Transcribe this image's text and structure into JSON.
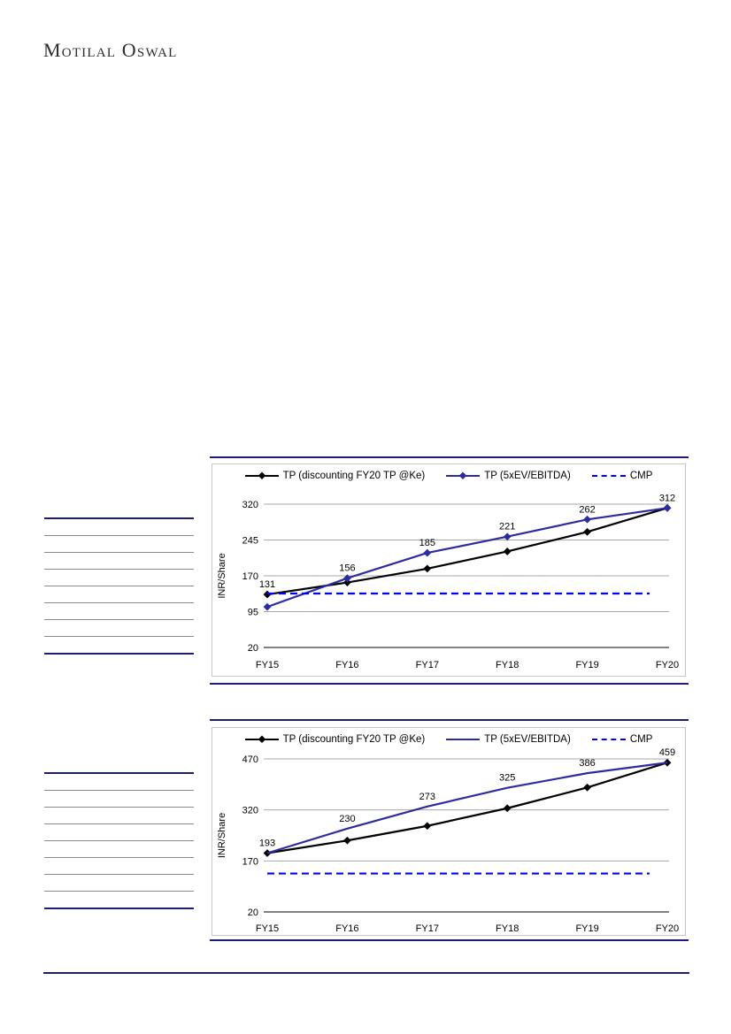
{
  "page": {
    "logo_text": "Motilal Oswal"
  },
  "colors": {
    "brand_navy_rule": "#1C1C78",
    "tp_black_line": "#000000",
    "tp_navy_line": "#2C2CA0",
    "cmp_dashed_blue": "#0000FF",
    "gridline_gray": "#A8A8A8"
  },
  "side_tables": [
    {
      "rows": 8
    },
    {
      "rows": 8
    }
  ],
  "chart_data": [
    {
      "type": "line",
      "title": "",
      "xlabel": "",
      "ylabel": "INR/Share",
      "categories": [
        "FY15",
        "FY16",
        "FY17",
        "FY18",
        "FY19",
        "FY20"
      ],
      "y_ticks": [
        320,
        245,
        170,
        95,
        20
      ],
      "ylim": [
        20,
        320
      ],
      "grid": true,
      "legend_position": "top",
      "data_labels": [
        131,
        156,
        185,
        221,
        262,
        312
      ],
      "series": [
        {
          "name": "TP (discounting FY20 TP @Ke)",
          "color": "#000000",
          "marker": "diamond",
          "values": [
            131,
            156,
            185,
            221,
            262,
            312
          ],
          "labeled": true
        },
        {
          "name": "TP (5xEV/EBITDA)",
          "color": "#2C2CA0",
          "marker": "diamond",
          "values": [
            105,
            165,
            218,
            252,
            288,
            312
          ]
        },
        {
          "name": "CMP",
          "color": "#0000FF",
          "dashed": true,
          "constant": 133
        }
      ]
    },
    {
      "type": "line",
      "title": "",
      "xlabel": "",
      "ylabel": "INR/Share",
      "categories": [
        "FY15",
        "FY16",
        "FY17",
        "FY18",
        "FY19",
        "FY20"
      ],
      "y_ticks": [
        470,
        320,
        170,
        20
      ],
      "ylim": [
        20,
        470
      ],
      "grid": true,
      "legend_position": "top",
      "data_labels": [
        193,
        230,
        273,
        325,
        386,
        459
      ],
      "series": [
        {
          "name": "TP (discounting FY20 TP @Ke)",
          "color": "#000000",
          "marker": "diamond",
          "values": [
            193,
            230,
            273,
            325,
            386,
            459
          ],
          "labeled": true
        },
        {
          "name": "TP (5xEV/EBITDA)",
          "color": "#2C2CA0",
          "marker": "none",
          "values": [
            193,
            265,
            330,
            385,
            428,
            459
          ]
        },
        {
          "name": "CMP",
          "color": "#0000FF",
          "dashed": true,
          "constant": 133
        }
      ]
    }
  ]
}
